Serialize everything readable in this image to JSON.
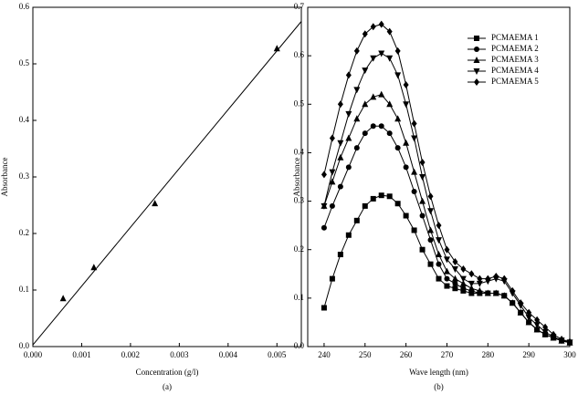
{
  "chart_data": [
    {
      "type": "scatter",
      "caption": "(a)",
      "xlabel": "Concentration (g/l)",
      "ylabel": "Absorbance",
      "x": [
        0.00062,
        0.00125,
        0.0025,
        0.005
      ],
      "values": [
        0.085,
        0.14,
        0.253,
        0.527
      ],
      "marker": "triangle-up",
      "color": "#000000",
      "fit": {
        "x": [
          0,
          0.0055
        ],
        "values": [
          0.003,
          0.575
        ]
      },
      "xlim": [
        0,
        0.0055
      ],
      "ylim": [
        0,
        0.6
      ],
      "xticks": [
        {
          "value": 0,
          "label": "0.000"
        },
        0.001,
        0.002,
        0.003,
        0.004,
        0.005
      ],
      "yticks": [
        {
          "value": 0,
          "label": "0.0"
        },
        0.1,
        0.2,
        0.3,
        0.4,
        0.5,
        0.6
      ]
    },
    {
      "type": "line",
      "caption": "(b)",
      "xlabel": "Wave length (nm)",
      "ylabel": "Absorbance",
      "legend": "upper right",
      "x": [
        240,
        242,
        244,
        246,
        248,
        250,
        252,
        254,
        256,
        258,
        260,
        262,
        264,
        266,
        268,
        270,
        272,
        274,
        276,
        278,
        280,
        282,
        284,
        286,
        288,
        290,
        292,
        294,
        296,
        298,
        300
      ],
      "series": [
        {
          "name": "PCMAEMA 1",
          "color": "#000000",
          "marker": "square",
          "values": [
            0.08,
            0.14,
            0.19,
            0.23,
            0.26,
            0.29,
            0.305,
            0.312,
            0.31,
            0.295,
            0.27,
            0.24,
            0.2,
            0.17,
            0.14,
            0.125,
            0.12,
            0.115,
            0.11,
            0.11,
            0.11,
            0.11,
            0.105,
            0.09,
            0.07,
            0.05,
            0.035,
            0.025,
            0.018,
            0.012,
            0.008
          ]
        },
        {
          "name": "PCMAEMA 2",
          "color": "#000000",
          "marker": "circle",
          "values": [
            0.245,
            0.29,
            0.33,
            0.37,
            0.41,
            0.44,
            0.455,
            0.455,
            0.44,
            0.41,
            0.37,
            0.32,
            0.27,
            0.22,
            0.17,
            0.14,
            0.13,
            0.12,
            0.115,
            0.11,
            0.11,
            0.11,
            0.105,
            0.09,
            0.07,
            0.05,
            0.035,
            0.025,
            0.018,
            0.012,
            0.008
          ]
        },
        {
          "name": "PCMAEMA 3",
          "color": "#000000",
          "marker": "triangle-up",
          "values": [
            0.29,
            0.34,
            0.39,
            0.43,
            0.47,
            0.5,
            0.515,
            0.52,
            0.5,
            0.47,
            0.42,
            0.36,
            0.3,
            0.24,
            0.19,
            0.155,
            0.14,
            0.13,
            0.12,
            0.115,
            0.11,
            0.11,
            0.105,
            0.09,
            0.07,
            0.05,
            0.035,
            0.025,
            0.018,
            0.012,
            0.008
          ]
        },
        {
          "name": "PCMAEMA 4",
          "color": "#000000",
          "marker": "triangle-down",
          "values": [
            0.29,
            0.36,
            0.42,
            0.48,
            0.53,
            0.57,
            0.595,
            0.605,
            0.595,
            0.56,
            0.5,
            0.43,
            0.35,
            0.28,
            0.22,
            0.18,
            0.16,
            0.14,
            0.13,
            0.13,
            0.135,
            0.14,
            0.135,
            0.11,
            0.085,
            0.06,
            0.045,
            0.03,
            0.02,
            0.013,
            0.009
          ]
        },
        {
          "name": "PCMAEMA 5",
          "color": "#000000",
          "marker": "diamond",
          "values": [
            0.355,
            0.43,
            0.5,
            0.56,
            0.61,
            0.645,
            0.66,
            0.665,
            0.65,
            0.61,
            0.54,
            0.46,
            0.38,
            0.31,
            0.25,
            0.2,
            0.175,
            0.16,
            0.15,
            0.14,
            0.14,
            0.145,
            0.14,
            0.115,
            0.09,
            0.07,
            0.055,
            0.04,
            0.025,
            0.015,
            0.01
          ]
        }
      ],
      "xlim": [
        236,
        300
      ],
      "ylim": [
        0,
        0.7
      ],
      "xticks": [
        240,
        250,
        260,
        270,
        280,
        290,
        300
      ],
      "yticks": [
        {
          "value": 0,
          "label": "0.0"
        },
        0.1,
        0.2,
        0.3,
        0.4,
        0.5,
        0.6,
        0.7
      ]
    }
  ]
}
